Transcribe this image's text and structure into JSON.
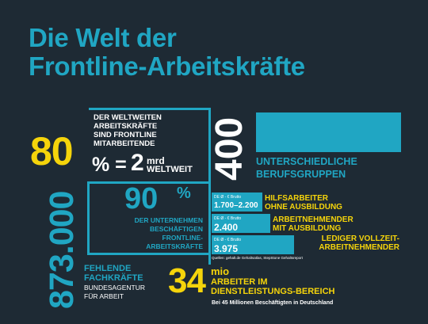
{
  "title": {
    "line1": "Die Welt der",
    "line2": "Frontline-Arbeitskräfte"
  },
  "stat_80": {
    "value": "80",
    "unit": "%",
    "text": [
      "DER WELTWEITEN",
      "ARBEITSKRÄFTE",
      "SIND FRONTLINE",
      "MITARBEITENDE"
    ]
  },
  "stat_2mrd": {
    "prefix": "% =",
    "value": "2",
    "unit": "mrd",
    "suffix": "WELTWEIT"
  },
  "stat_400": {
    "value": "400",
    "text": [
      "UNTERSCHIEDLICHE",
      "BERUFSGRUPPEN"
    ]
  },
  "stat_90": {
    "value": "90",
    "unit": "%",
    "text": [
      "DER UNTERNEHMEN",
      "BESCHÄFTIGEN",
      "FRONTLINE-",
      "ARBEITSKRÄFTE"
    ]
  },
  "stat_873000": {
    "value": "873.000",
    "title": [
      "FEHLENDE",
      "FACHKRÄFTE"
    ],
    "source": [
      "BUNDESAGENTUR",
      "FÜR ARBEIT"
    ]
  },
  "wages": {
    "tag": "DE Ø - € Brutto",
    "items": [
      {
        "value": "1.700–2.200",
        "label": [
          "HILFSARBEITER",
          "OHNE AUSBILDUNG"
        ]
      },
      {
        "value": "2.400",
        "label": [
          "ARBEITNEHMENDER",
          "MIT AUSBILDUNG"
        ]
      },
      {
        "value": "3.975",
        "label": [
          "LEDIGER VOLLZEIT-",
          "ARBEITNEHMENDER"
        ]
      }
    ],
    "source": "Quellen: gehalt.de Gehaltsatlas, StepStone Gehaltsreport"
  },
  "stat_34mio": {
    "value": "34",
    "unit": "mio",
    "text": [
      "ARBEITER IM",
      "DIENSTLEISTUNGS-BEREICH"
    ],
    "note": "Bei 45 Millionen Beschäftigten in Deutschland"
  },
  "colors": {
    "background": "#1e2a34",
    "cyan": "#20a6c3",
    "yellow": "#f5d40b",
    "white": "#ffffff"
  }
}
